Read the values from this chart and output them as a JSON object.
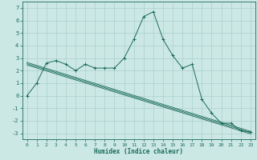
{
  "xlabel": "Humidex (Indice chaleur)",
  "background_color": "#cce8e4",
  "grid_color": "#aacfcc",
  "line_color": "#1a6b5a",
  "xlim": [
    -0.5,
    23.5
  ],
  "ylim": [
    -3.5,
    7.5
  ],
  "xticks": [
    0,
    1,
    2,
    3,
    4,
    5,
    6,
    7,
    8,
    9,
    10,
    11,
    12,
    13,
    14,
    15,
    16,
    17,
    18,
    19,
    20,
    21,
    22,
    23
  ],
  "yticks": [
    -3,
    -2,
    -1,
    0,
    1,
    2,
    3,
    4,
    5,
    6,
    7
  ],
  "main_x": [
    0,
    1,
    2,
    3,
    4,
    5,
    6,
    7,
    8,
    9,
    10,
    11,
    12,
    13,
    14,
    15,
    16,
    17,
    18,
    19,
    20,
    21,
    22,
    23
  ],
  "main_y": [
    0,
    1.0,
    2.6,
    2.8,
    2.5,
    2.0,
    2.5,
    2.2,
    2.2,
    2.2,
    3.0,
    4.5,
    6.3,
    6.7,
    4.5,
    3.2,
    2.2,
    2.5,
    -0.3,
    -1.4,
    -2.2,
    -2.2,
    -2.8,
    -2.9
  ],
  "reg_lines": [
    {
      "x": [
        0,
        23
      ],
      "y": [
        2.65,
        -2.85
      ]
    },
    {
      "x": [
        0,
        23
      ],
      "y": [
        2.55,
        -2.95
      ]
    },
    {
      "x": [
        0,
        23
      ],
      "y": [
        2.45,
        -3.05
      ]
    }
  ],
  "xlabel_fontsize": 5.5,
  "tick_fontsize": 4.5
}
